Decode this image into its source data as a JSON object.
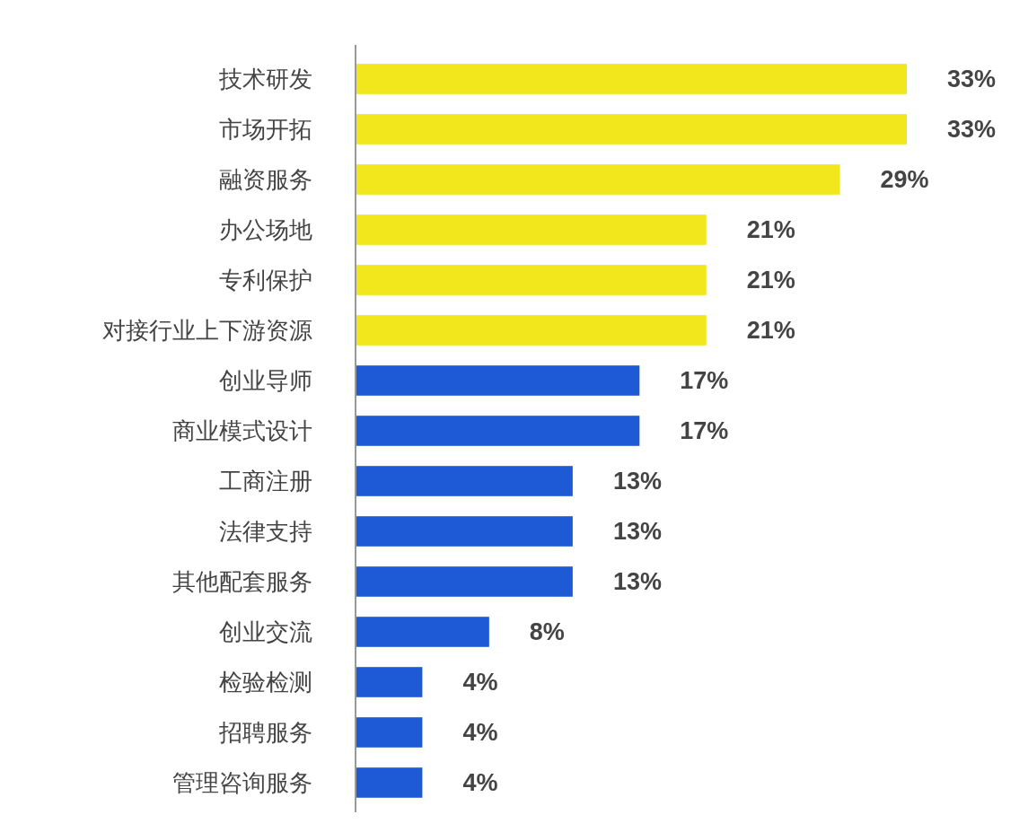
{
  "chart_data": {
    "type": "bar",
    "orientation": "horizontal",
    "value_labels": [
      "33%",
      "33%",
      "29%",
      "21%",
      "21%",
      "21%",
      "17%",
      "17%",
      "13%",
      "13%",
      "13%",
      "8%",
      "4%",
      "4%",
      "4%"
    ],
    "categories": [
      "技术研发",
      "市场开拓",
      "融资服务",
      "办公场地",
      "专利保护",
      "对接行业上下游资源",
      "创业导师",
      "商业模式设计",
      "工商注册",
      "法律支持",
      "其他配套服务",
      "创业交流",
      "检验检测",
      "招聘服务",
      "管理咨询服务"
    ],
    "values": [
      33,
      33,
      29,
      21,
      21,
      21,
      17,
      17,
      13,
      13,
      13,
      8,
      4,
      4,
      4
    ],
    "colors": [
      "#f2e61c",
      "#f2e61c",
      "#f2e61c",
      "#f2e61c",
      "#f2e61c",
      "#f2e61c",
      "#1f5ad6",
      "#1f5ad6",
      "#1f5ad6",
      "#1f5ad6",
      "#1f5ad6",
      "#1f5ad6",
      "#1f5ad6",
      "#1f5ad6",
      "#1f5ad6"
    ]
  }
}
